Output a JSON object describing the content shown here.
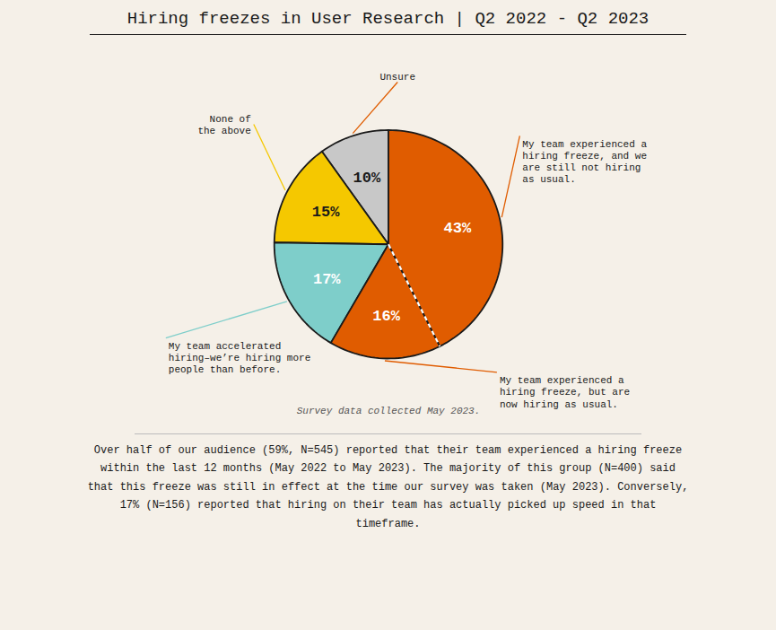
{
  "chart_data": {
    "type": "pie",
    "title": "Hiring freezes in User Research | Q2 2022 - Q2 2023",
    "categories": [
      "Unsure",
      "None of\nthe above",
      "My team accelerated\nhiring–we’re hiring more\npeople than before.",
      "My team experienced a\nhiring freeze, but are\nnow hiring as usual.",
      "My team experienced a\nhiring freeze, and we\nare still not hiring\nas usual."
    ],
    "values": [
      10,
      15,
      17,
      16,
      43
    ],
    "value_labels": [
      "10%",
      "15%",
      "17%",
      "16%",
      "43%"
    ],
    "colors": [
      "#c8c8c8",
      "#f5c800",
      "#7ececa",
      "#e05c00",
      "#e05c00"
    ],
    "data_labels": true,
    "annotations": [
      "Survey data collected May 2023.",
      "Over half of our audience (59%, N=545) reported that their team experienced a hiring freeze\nwithin the last 12 months (May 2022 to May 2023). The majority of this group (N=400) said\nthat this freeze was still in effect at the time our survey was taken (May 2023). Conversely,\n17% (N=156) reported that hiring on their team has actually picked up speed in that\ntimeframe."
    ]
  }
}
